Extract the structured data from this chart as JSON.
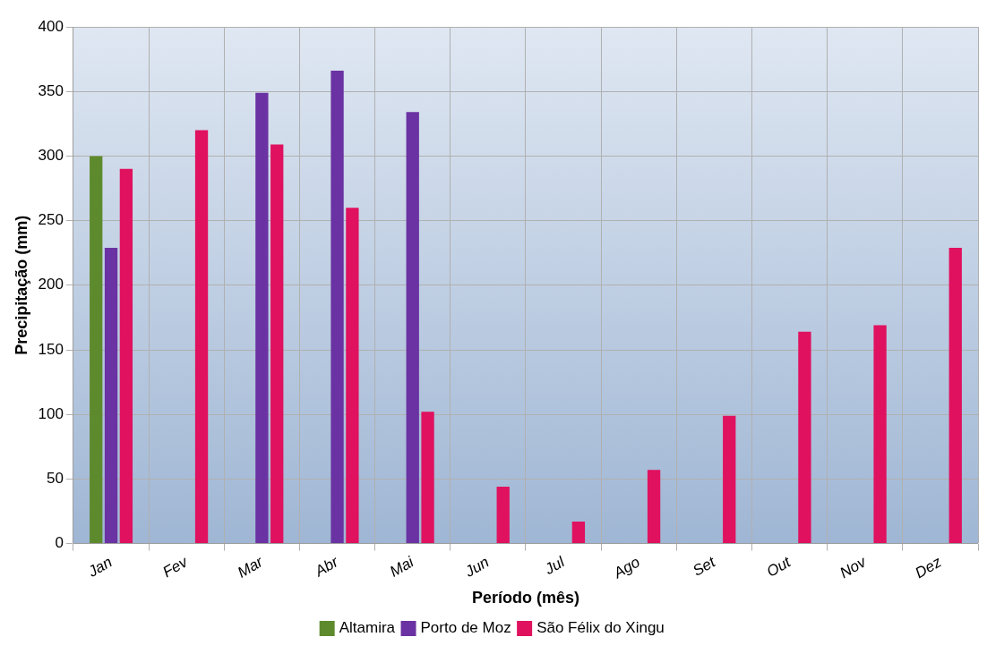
{
  "chart_data": {
    "type": "bar",
    "xlabel": "Período (mês)",
    "ylabel": "Precipitação (mm)",
    "categories": [
      "Jan",
      "Fev",
      "Mar",
      "Abr",
      "Mai",
      "Jun",
      "Jul",
      "Ago",
      "Set",
      "Out",
      "Nov",
      "Dez"
    ],
    "series": [
      {
        "name": "Altamira",
        "color": "#5e8a2e",
        "values": [
          300,
          null,
          null,
          null,
          null,
          null,
          null,
          null,
          null,
          null,
          null,
          null
        ]
      },
      {
        "name": "Porto de Moz",
        "color": "#6a32a2",
        "values": [
          229,
          null,
          349,
          366,
          334,
          null,
          null,
          null,
          null,
          null,
          null,
          null
        ]
      },
      {
        "name": "São Félix do Xingu",
        "color": "#e0115f",
        "values": [
          290,
          320,
          309,
          260,
          102,
          44,
          17,
          57,
          99,
          164,
          169,
          229
        ]
      }
    ],
    "ylim": [
      0,
      400
    ],
    "yticks": [
      0,
      50,
      100,
      150,
      200,
      250,
      300,
      350,
      400
    ],
    "grid": true,
    "legend": "bottom"
  }
}
